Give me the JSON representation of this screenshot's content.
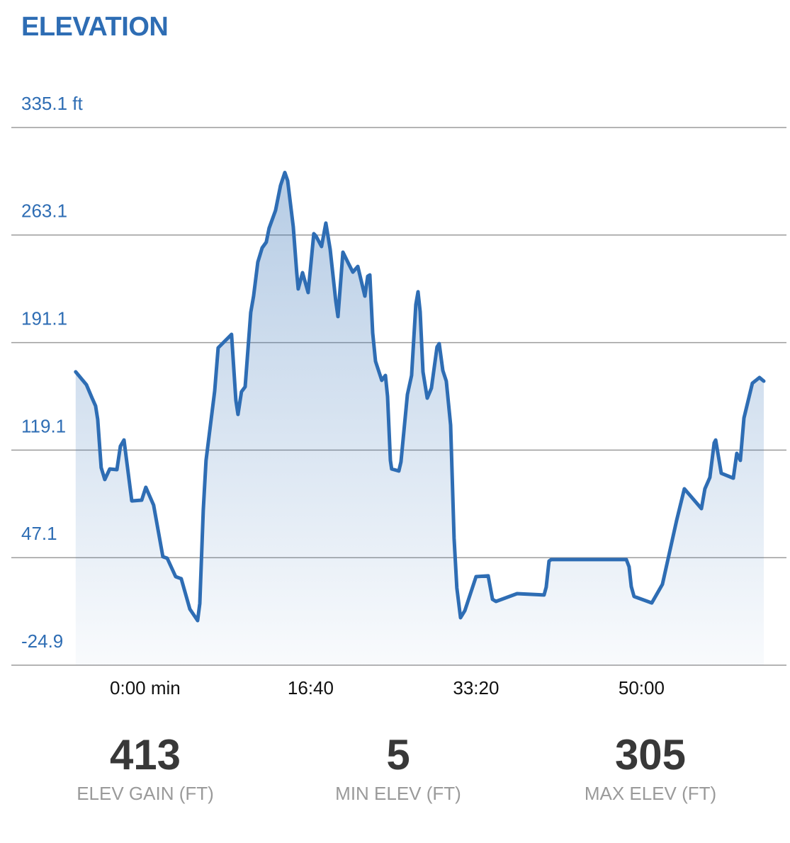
{
  "chart_data": {
    "type": "line",
    "title": "ELEVATION",
    "color": "#2e6db4",
    "grid": true,
    "xlim": [
      -809,
      3876
    ],
    "xticks": [
      {
        "value": 0,
        "label": "0:00 min"
      },
      {
        "value": 1000,
        "label": "16:40"
      },
      {
        "value": 2000,
        "label": "33:20"
      },
      {
        "value": 3000,
        "label": "50:00"
      }
    ],
    "ylim": [
      -24.9,
      335.1
    ],
    "yticks": [
      -24.9,
      47.1,
      119.1,
      191.1,
      263.1,
      {
        "value": 335.1,
        "label": "335.1 ft"
      }
    ],
    "x": [
      -420,
      -355,
      -321,
      -300,
      -287,
      -266,
      -244,
      -214,
      -171,
      -150,
      -128,
      -81,
      -21,
      4,
      51,
      107,
      133,
      184,
      218,
      270,
      317,
      330,
      351,
      368,
      420,
      441,
      522,
      548,
      561,
      582,
      604,
      638,
      655,
      681,
      707,
      732,
      749,
      788,
      818,
      844,
      861,
      895,
      916,
      925,
      951,
      985,
      1019,
      1032,
      1066,
      1092,
      1118,
      1152,
      1165,
      1195,
      1229,
      1255,
      1285,
      1328,
      1345,
      1358,
      1375,
      1392,
      1430,
      1452,
      1465,
      1482,
      1490,
      1533,
      1546,
      1585,
      1610,
      1636,
      1649,
      1662,
      1679,
      1705,
      1730,
      1764,
      1777,
      1799,
      1820,
      1846,
      1867,
      1884,
      1906,
      1932,
      2000,
      2073,
      2099,
      2120,
      2248,
      2411,
      2424,
      2441,
      2454,
      2908,
      2925,
      2938,
      2955,
      3062,
      3126,
      3169,
      3212,
      3259,
      3362,
      3383,
      3413,
      3439,
      3448,
      3482,
      3555,
      3576,
      3597,
      3619,
      3670,
      3713,
      3739
    ],
    "values": [
      171.5,
      162.9,
      153.9,
      148.7,
      139.7,
      107.4,
      99.4,
      106.5,
      106.0,
      121.7,
      125.9,
      85.1,
      85.6,
      94.2,
      82.3,
      47.7,
      46.7,
      34.4,
      33.0,
      12.6,
      5.0,
      16.4,
      79.0,
      112.2,
      158.7,
      187.6,
      196.6,
      152.5,
      143.0,
      158.2,
      161.5,
      211.3,
      222.2,
      245.0,
      254.5,
      258.3,
      267.7,
      279.6,
      296.2,
      305.0,
      299.5,
      268.7,
      237.9,
      227.0,
      237.9,
      224.6,
      264.0,
      262.5,
      255.4,
      271.1,
      253.5,
      218.9,
      208.5,
      251.6,
      244.0,
      238.3,
      242.1,
      222.2,
      235.5,
      236.4,
      197.6,
      178.6,
      165.8,
      169.1,
      154.9,
      112.2,
      106.5,
      105.1,
      111.2,
      156.3,
      169.1,
      216.5,
      225.1,
      211.8,
      171.5,
      153.9,
      160.6,
      188.1,
      190.4,
      172.4,
      165.3,
      135.9,
      60.0,
      26.8,
      6.9,
      11.6,
      34.4,
      34.9,
      19.2,
      17.8,
      23.0,
      22.1,
      27.3,
      44.8,
      45.8,
      45.8,
      41.0,
      27.7,
      21.1,
      16.8,
      29.2,
      50.5,
      71.9,
      93.2,
      79.9,
      93.2,
      100.8,
      124.0,
      125.9,
      103.6,
      100.3,
      116.9,
      112.2,
      140.6,
      163.9,
      167.7,
      165.3
    ]
  },
  "stats": [
    {
      "value": 413,
      "label": "ELEV GAIN (FT)"
    },
    {
      "value": 5,
      "label": "MIN ELEV (FT)"
    },
    {
      "value": 305,
      "label": "MAX ELEV (FT)"
    }
  ]
}
